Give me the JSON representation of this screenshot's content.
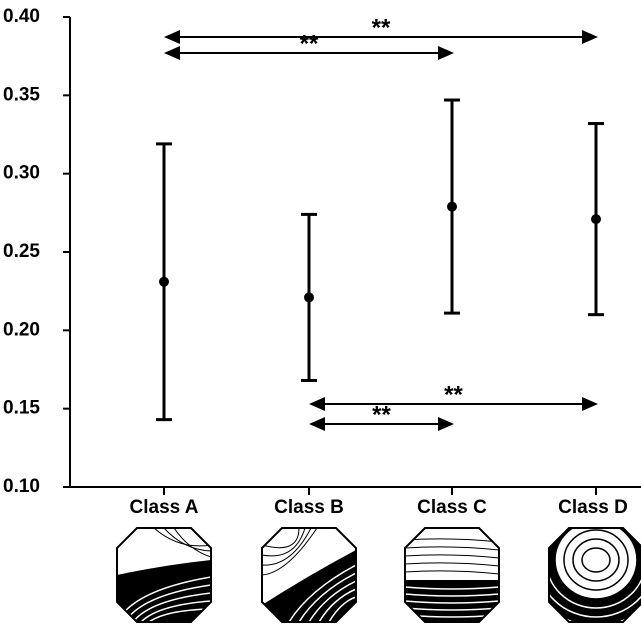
{
  "chart_data": {
    "type": "errorbar",
    "categories": [
      "Class A",
      "Class B",
      "Class C",
      "Class D"
    ],
    "values": [
      0.231,
      0.221,
      0.279,
      0.271
    ],
    "errors": [
      0.088,
      0.053,
      0.068,
      0.061
    ],
    "color": "#000000",
    "ylim": [
      0.1,
      0.4
    ],
    "yticks": [
      {
        "value": 0.1,
        "label": "0.10"
      },
      {
        "value": 0.15,
        "label": "0.15"
      },
      {
        "value": 0.2,
        "label": "0.20"
      },
      {
        "value": 0.25,
        "label": "0.25"
      },
      {
        "value": 0.3,
        "label": "0.30"
      },
      {
        "value": 0.35,
        "label": "0.35"
      },
      {
        "value": 0.4,
        "label": "0.40"
      }
    ],
    "comparisons": [
      {
        "from": "Class A",
        "to": "Class D",
        "label": "**"
      },
      {
        "from": "Class A",
        "to": "Class C",
        "label": "**"
      },
      {
        "from": "Class B",
        "to": "Class D",
        "label": "**"
      },
      {
        "from": "Class B",
        "to": "Class C",
        "label": "**"
      }
    ]
  }
}
